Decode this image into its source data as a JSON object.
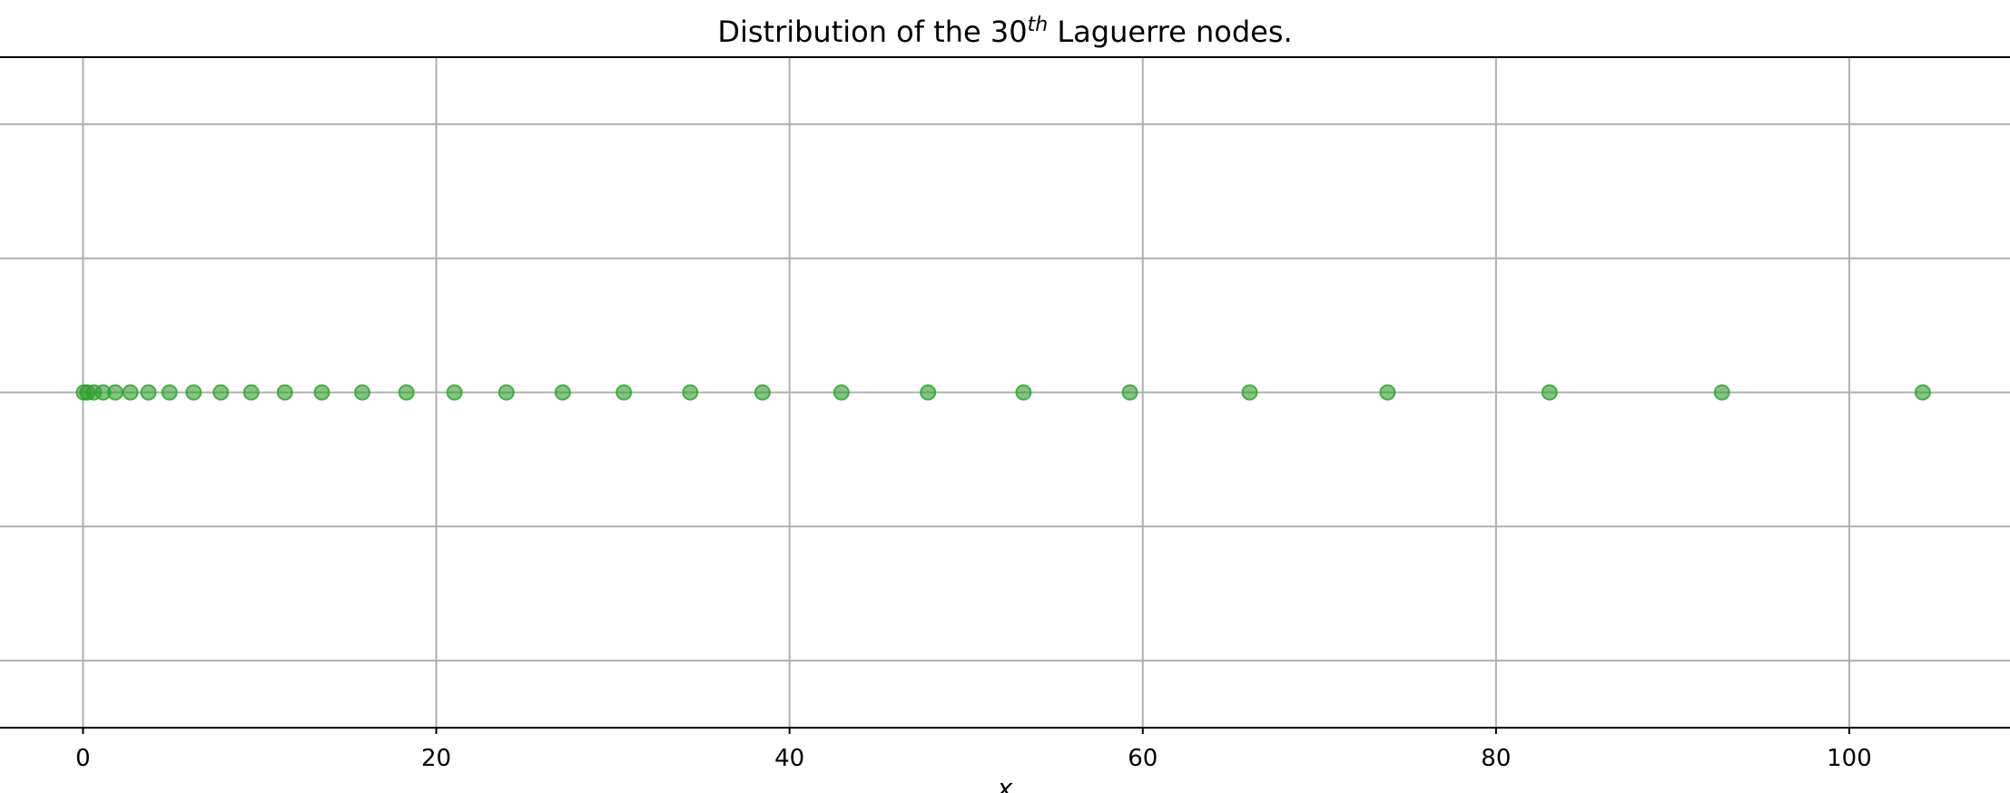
{
  "chart_data": {
    "type": "scatter",
    "title": {
      "prefix": "Distribution of the 30",
      "superscript": "th",
      "suffix": " Laguerre nodes."
    },
    "xlabel": "x",
    "ylabel": "",
    "xlim": [
      -4.7,
      109.1
    ],
    "ylim": [
      -1,
      1
    ],
    "x_ticks": [
      0,
      20,
      40,
      60,
      80,
      100
    ],
    "x_tick_labels": [
      "0",
      "20",
      "40",
      "60",
      "80",
      "100"
    ],
    "y_gridlines": [
      -0.8,
      -0.4,
      0.4,
      0.8
    ],
    "grid": true,
    "series": [
      {
        "marker": "circle",
        "color": "#2ca02c",
        "alpha": 0.6,
        "x": [
          0.047,
          0.249,
          0.612,
          1.138,
          1.827,
          2.681,
          3.704,
          4.897,
          6.262,
          7.803,
          9.524,
          11.43,
          13.52,
          15.81,
          18.31,
          21.03,
          23.97,
          27.16,
          30.62,
          34.38,
          38.47,
          42.94,
          47.84,
          53.25,
          59.27,
          66.05,
          73.86,
          83.03,
          92.79,
          104.16
        ],
        "y": [
          0,
          0,
          0,
          0,
          0,
          0,
          0,
          0,
          0,
          0,
          0,
          0,
          0,
          0,
          0,
          0,
          0,
          0,
          0,
          0,
          0,
          0,
          0,
          0,
          0,
          0,
          0,
          0,
          0,
          0
        ]
      }
    ]
  }
}
